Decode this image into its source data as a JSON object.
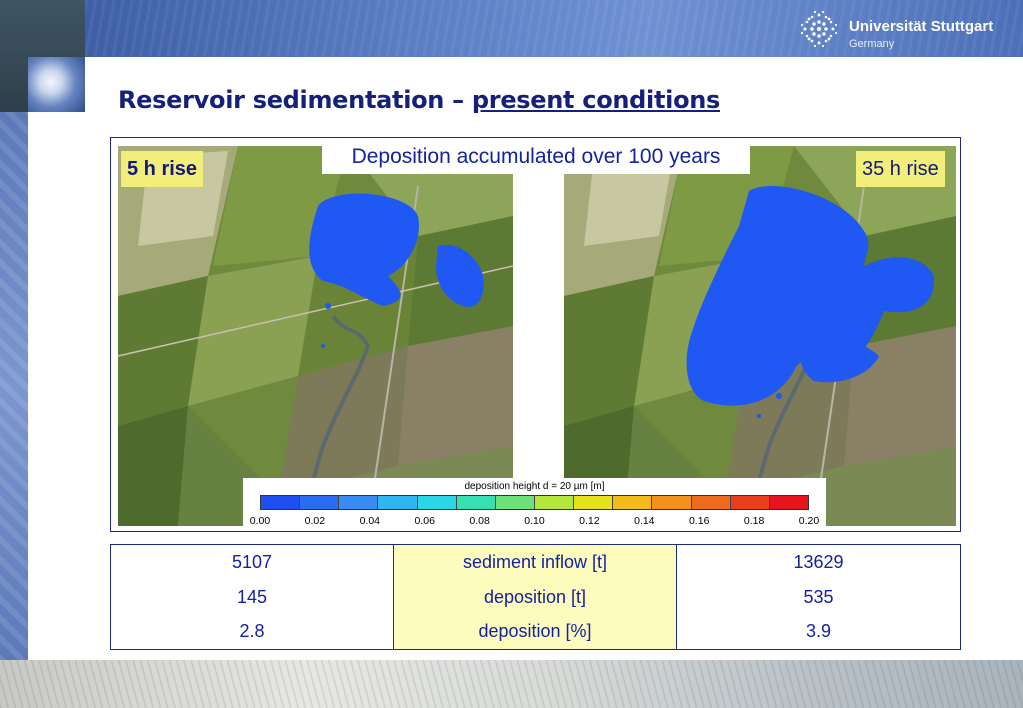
{
  "header": {
    "university": "Universität Stuttgart",
    "country": "Germany"
  },
  "title": {
    "part1": "Reservoir sedimentation – ",
    "part2": "present conditions"
  },
  "figure": {
    "caption": "Deposition accumulated over 100 years",
    "left_label": "5 h rise",
    "right_label": "35 h rise",
    "colorbar": {
      "title": "deposition height d = 20 µm [m]",
      "ticks": [
        "0.00",
        "0.02",
        "0.04",
        "0.06",
        "0.08",
        "0.10",
        "0.12",
        "0.14",
        "0.16",
        "0.18",
        "0.20"
      ],
      "colors": [
        "#1f4ff0",
        "#2c6cf2",
        "#3a8cf4",
        "#2fb5f0",
        "#2bd6e6",
        "#37e0b3",
        "#6de27c",
        "#b5e63a",
        "#e6e21c",
        "#f2bb1a",
        "#f2921c",
        "#ee6a1e",
        "#ea3f1e",
        "#e4151d"
      ]
    }
  },
  "table": {
    "rows": [
      {
        "left": "5107",
        "label": "sediment inflow [t]",
        "right": "13629"
      },
      {
        "left": "145",
        "label": "deposition [t]",
        "right": "535"
      },
      {
        "left": "2.8",
        "label": "deposition [%]",
        "right": "3.9"
      }
    ]
  }
}
